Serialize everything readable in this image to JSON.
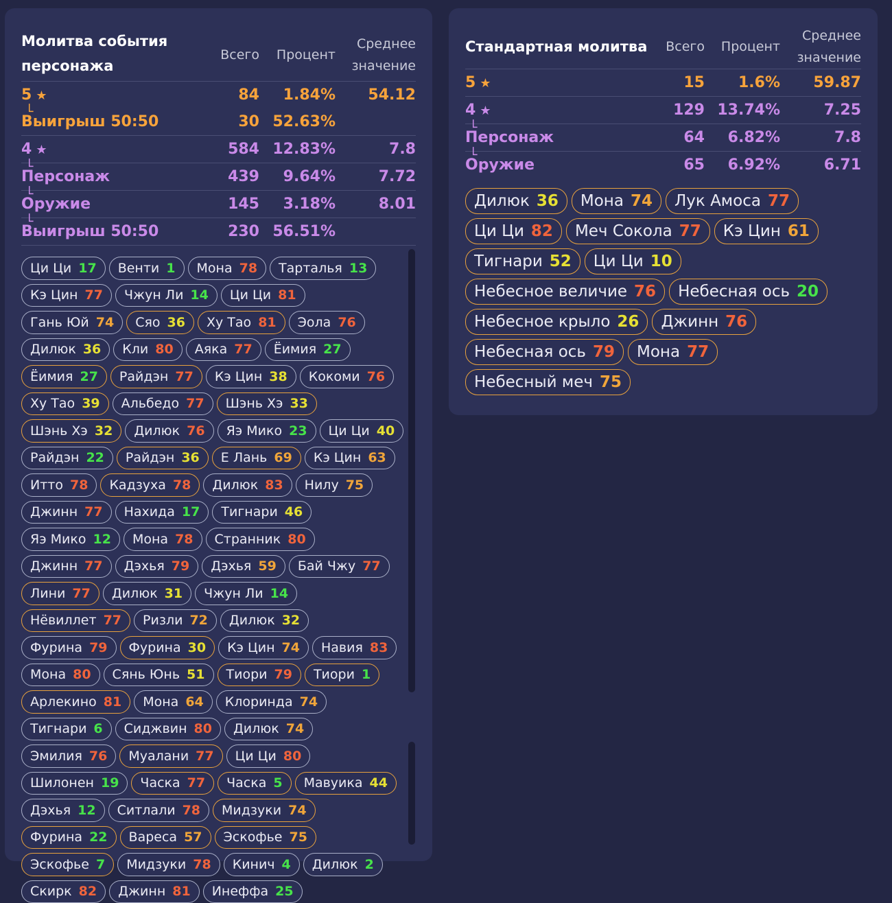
{
  "left": {
    "title": "Молитва события персонажа",
    "headers": {
      "total": "Всего",
      "percent": "Процент",
      "average": "Среднее значение"
    },
    "rows": [
      {
        "label": "5",
        "total": "84",
        "percent": "1.84%",
        "average": "54.12"
      },
      {
        "label": "Выигрыш 50:50",
        "total": "30",
        "percent": "52.63%",
        "average": ""
      },
      {
        "label": "4",
        "total": "584",
        "percent": "12.83%",
        "average": "7.8"
      },
      {
        "label": "Персонаж",
        "total": "439",
        "percent": "9.64%",
        "average": "7.72"
      },
      {
        "label": "Оружие",
        "total": "145",
        "percent": "3.18%",
        "average": "8.01"
      },
      {
        "label": "Выигрыш 50:50",
        "total": "230",
        "percent": "56.51%",
        "average": ""
      }
    ],
    "chips": [
      {
        "name": "Ци Ци",
        "num": "17",
        "c": "g",
        "gold": false
      },
      {
        "name": "Венти",
        "num": "1",
        "c": "g",
        "gold": false
      },
      {
        "name": "Мона",
        "num": "78",
        "c": "r",
        "gold": false
      },
      {
        "name": "Тарталья",
        "num": "13",
        "c": "g",
        "gold": false
      },
      {
        "name": "Кэ Цин",
        "num": "77",
        "c": "r",
        "gold": false
      },
      {
        "name": "Чжун Ли",
        "num": "14",
        "c": "g",
        "gold": false
      },
      {
        "name": "Ци Ци",
        "num": "81",
        "c": "r",
        "gold": false
      },
      {
        "name": "Гань Юй",
        "num": "74",
        "c": "o",
        "gold": false
      },
      {
        "name": "Сяо",
        "num": "36",
        "c": "y",
        "gold": true
      },
      {
        "name": "Ху Тао",
        "num": "81",
        "c": "r",
        "gold": true
      },
      {
        "name": "Эола",
        "num": "76",
        "c": "r",
        "gold": false
      },
      {
        "name": "Дилюк",
        "num": "36",
        "c": "y",
        "gold": false
      },
      {
        "name": "Кли",
        "num": "80",
        "c": "r",
        "gold": false
      },
      {
        "name": "Аяка",
        "num": "77",
        "c": "r",
        "gold": false
      },
      {
        "name": "Ёимия",
        "num": "27",
        "c": "g",
        "gold": false
      },
      {
        "name": "Ёимия",
        "num": "27",
        "c": "g",
        "gold": true
      },
      {
        "name": "Райдэн",
        "num": "77",
        "c": "r",
        "gold": true
      },
      {
        "name": "Кэ Цин",
        "num": "38",
        "c": "y",
        "gold": false
      },
      {
        "name": "Кокоми",
        "num": "76",
        "c": "r",
        "gold": false
      },
      {
        "name": "Ху Тао",
        "num": "39",
        "c": "y",
        "gold": true
      },
      {
        "name": "Альбедо",
        "num": "77",
        "c": "r",
        "gold": false
      },
      {
        "name": "Шэнь Хэ",
        "num": "33",
        "c": "y",
        "gold": true
      },
      {
        "name": "Шэнь Хэ",
        "num": "32",
        "c": "y",
        "gold": true
      },
      {
        "name": "Дилюк",
        "num": "76",
        "c": "r",
        "gold": false
      },
      {
        "name": "Яэ Мико",
        "num": "23",
        "c": "g",
        "gold": false
      },
      {
        "name": "Ци Ци",
        "num": "40",
        "c": "y",
        "gold": false
      },
      {
        "name": "Райдэн",
        "num": "22",
        "c": "g",
        "gold": false
      },
      {
        "name": "Райдэн",
        "num": "36",
        "c": "y",
        "gold": true
      },
      {
        "name": "Е Лань",
        "num": "69",
        "c": "o",
        "gold": true
      },
      {
        "name": "Кэ Цин",
        "num": "63",
        "c": "o",
        "gold": false
      },
      {
        "name": "Итто",
        "num": "78",
        "c": "r",
        "gold": false
      },
      {
        "name": "Кадзуха",
        "num": "78",
        "c": "r",
        "gold": true
      },
      {
        "name": "Дилюк",
        "num": "83",
        "c": "r",
        "gold": false
      },
      {
        "name": "Нилу",
        "num": "75",
        "c": "o",
        "gold": false
      },
      {
        "name": "Джинн",
        "num": "77",
        "c": "r",
        "gold": false
      },
      {
        "name": "Нахида",
        "num": "17",
        "c": "g",
        "gold": false
      },
      {
        "name": "Тигнари",
        "num": "46",
        "c": "y",
        "gold": false
      },
      {
        "name": "Яэ Мико",
        "num": "12",
        "c": "g",
        "gold": false
      },
      {
        "name": "Мона",
        "num": "78",
        "c": "r",
        "gold": false
      },
      {
        "name": "Странник",
        "num": "80",
        "c": "r",
        "gold": false
      },
      {
        "name": "Джинн",
        "num": "77",
        "c": "r",
        "gold": false
      },
      {
        "name": "Дэхья",
        "num": "79",
        "c": "r",
        "gold": false
      },
      {
        "name": "Дэхья",
        "num": "59",
        "c": "o",
        "gold": false
      },
      {
        "name": "Бай Чжу",
        "num": "77",
        "c": "r",
        "gold": false
      },
      {
        "name": "Лини",
        "num": "77",
        "c": "r",
        "gold": true
      },
      {
        "name": "Дилюк",
        "num": "31",
        "c": "y",
        "gold": false
      },
      {
        "name": "Чжун Ли",
        "num": "14",
        "c": "g",
        "gold": false
      },
      {
        "name": "Нёвиллет",
        "num": "77",
        "c": "r",
        "gold": true
      },
      {
        "name": "Ризли",
        "num": "72",
        "c": "o",
        "gold": false
      },
      {
        "name": "Дилюк",
        "num": "32",
        "c": "y",
        "gold": false
      },
      {
        "name": "Фурина",
        "num": "79",
        "c": "r",
        "gold": false
      },
      {
        "name": "Фурина",
        "num": "30",
        "c": "y",
        "gold": true
      },
      {
        "name": "Кэ Цин",
        "num": "74",
        "c": "o",
        "gold": false
      },
      {
        "name": "Навия",
        "num": "83",
        "c": "r",
        "gold": false
      },
      {
        "name": "Мона",
        "num": "80",
        "c": "r",
        "gold": false
      },
      {
        "name": "Сянь Юнь",
        "num": "51",
        "c": "y",
        "gold": false
      },
      {
        "name": "Тиори",
        "num": "79",
        "c": "r",
        "gold": true
      },
      {
        "name": "Тиори",
        "num": "1",
        "c": "g",
        "gold": true
      },
      {
        "name": "Арлекино",
        "num": "81",
        "c": "r",
        "gold": true
      },
      {
        "name": "Мона",
        "num": "64",
        "c": "o",
        "gold": false
      },
      {
        "name": "Клоринда",
        "num": "74",
        "c": "o",
        "gold": false
      },
      {
        "name": "Тигнари",
        "num": "6",
        "c": "g",
        "gold": false
      },
      {
        "name": "Сиджвин",
        "num": "80",
        "c": "r",
        "gold": false
      },
      {
        "name": "Дилюк",
        "num": "74",
        "c": "o",
        "gold": false
      },
      {
        "name": "Эмилия",
        "num": "76",
        "c": "r",
        "gold": false
      },
      {
        "name": "Муалани",
        "num": "77",
        "c": "r",
        "gold": true
      },
      {
        "name": "Ци Ци",
        "num": "80",
        "c": "r",
        "gold": false
      },
      {
        "name": "Шилонен",
        "num": "19",
        "c": "g",
        "gold": false
      },
      {
        "name": "Часка",
        "num": "77",
        "c": "r",
        "gold": true
      },
      {
        "name": "Часка",
        "num": "5",
        "c": "g",
        "gold": true
      },
      {
        "name": "Мавуика",
        "num": "44",
        "c": "y",
        "gold": true
      },
      {
        "name": "Дэхья",
        "num": "12",
        "c": "g",
        "gold": false
      },
      {
        "name": "Ситлали",
        "num": "78",
        "c": "r",
        "gold": false
      },
      {
        "name": "Мидзуки",
        "num": "74",
        "c": "o",
        "gold": true
      },
      {
        "name": "Фурина",
        "num": "22",
        "c": "g",
        "gold": true
      },
      {
        "name": "Вареса",
        "num": "57",
        "c": "o",
        "gold": true
      },
      {
        "name": "Эскофье",
        "num": "75",
        "c": "o",
        "gold": true
      },
      {
        "name": "Эскофье",
        "num": "7",
        "c": "g",
        "gold": true
      },
      {
        "name": "Мидзуки",
        "num": "78",
        "c": "r",
        "gold": false
      },
      {
        "name": "Кинич",
        "num": "4",
        "c": "g",
        "gold": false
      },
      {
        "name": "Дилюк",
        "num": "2",
        "c": "g",
        "gold": false
      },
      {
        "name": "Скирк",
        "num": "82",
        "c": "r",
        "gold": false
      },
      {
        "name": "Джинн",
        "num": "81",
        "c": "r",
        "gold": false
      },
      {
        "name": "Инеффа",
        "num": "25",
        "c": "g",
        "gold": false
      }
    ]
  },
  "right": {
    "title": "Стандартная молитва",
    "headers": {
      "total": "Всего",
      "percent": "Процент",
      "average": "Среднее значение"
    },
    "rows": [
      {
        "label": "5",
        "total": "15",
        "percent": "1.6%",
        "average": "59.87"
      },
      {
        "label": "4",
        "total": "129",
        "percent": "13.74%",
        "average": "7.25"
      },
      {
        "label": "Персонаж",
        "total": "64",
        "percent": "6.82%",
        "average": "7.8"
      },
      {
        "label": "Оружие",
        "total": "65",
        "percent": "6.92%",
        "average": "6.71"
      }
    ],
    "chips": [
      {
        "name": "Дилюк",
        "num": "36",
        "c": "y",
        "gold": true
      },
      {
        "name": "Мона",
        "num": "74",
        "c": "o",
        "gold": true
      },
      {
        "name": "Лук Амоса",
        "num": "77",
        "c": "r",
        "gold": true
      },
      {
        "name": "Ци Ци",
        "num": "82",
        "c": "r",
        "gold": true
      },
      {
        "name": "Меч Сокола",
        "num": "77",
        "c": "r",
        "gold": true
      },
      {
        "name": "Кэ Цин",
        "num": "61",
        "c": "o",
        "gold": true
      },
      {
        "name": "Тигнари",
        "num": "52",
        "c": "y",
        "gold": true
      },
      {
        "name": "Ци Ци",
        "num": "10",
        "c": "y",
        "gold": true
      },
      {
        "name": "Небесное величие",
        "num": "76",
        "c": "r",
        "gold": true
      },
      {
        "name": "Небесная ось",
        "num": "20",
        "c": "g",
        "gold": true
      },
      {
        "name": "Небесное крыло",
        "num": "26",
        "c": "y",
        "gold": true
      },
      {
        "name": "Джинн",
        "num": "76",
        "c": "r",
        "gold": true
      },
      {
        "name": "Небесная ось",
        "num": "79",
        "c": "r",
        "gold": true
      },
      {
        "name": "Мона",
        "num": "77",
        "c": "r",
        "gold": true
      },
      {
        "name": "Небесный меч",
        "num": "75",
        "c": "o",
        "gold": true
      }
    ]
  },
  "icons": {
    "star": "★"
  },
  "colors": {
    "five_star": "#f7a33b",
    "four_star": "#c98ae8",
    "pity_low": "#47e34a",
    "pity_mid": "#e6e034",
    "pity_high": "#f0a53a",
    "pity_max": "#f0643c"
  }
}
